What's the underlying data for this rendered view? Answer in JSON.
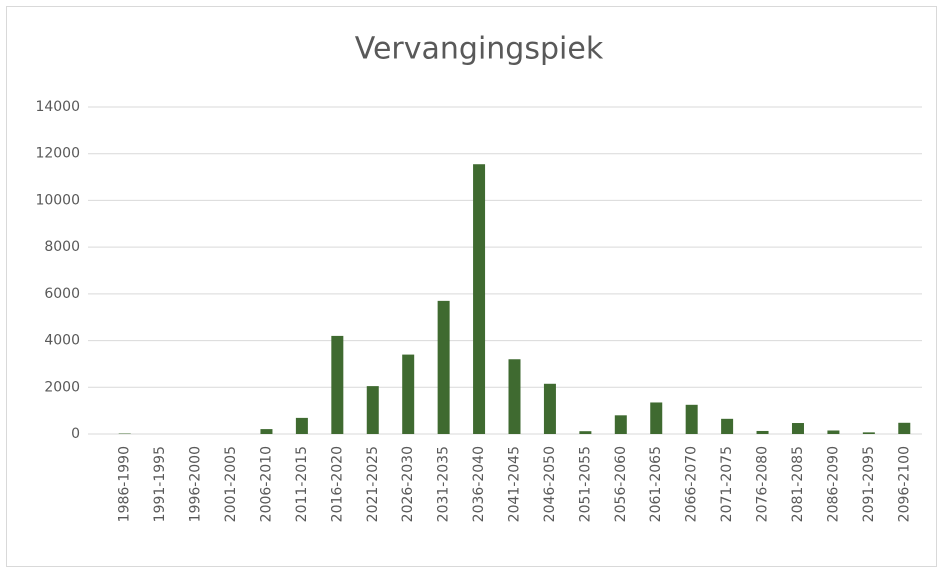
{
  "chart_data": {
    "type": "bar",
    "title": "Vervangingspiek",
    "categories": [
      "1986-1990",
      "1991-1995",
      "1996-2000",
      "2001-2005",
      "2006-2010",
      "2011-2015",
      "2016-2020",
      "2021-2025",
      "2026-2030",
      "2031-2035",
      "2036-2040",
      "2041-2045",
      "2046-2050",
      "2051-2055",
      "2056-2060",
      "2061-2065",
      "2066-2070",
      "2071-2075",
      "2076-2080",
      "2081-2085",
      "2086-2090",
      "2091-2095",
      "2096-2100"
    ],
    "values": [
      20,
      0,
      0,
      0,
      210,
      690,
      4200,
      2050,
      3400,
      5700,
      11550,
      3200,
      2150,
      120,
      800,
      1350,
      1250,
      650,
      130,
      470,
      150,
      70,
      480
    ],
    "color": "#3f6a30",
    "ylim": [
      0,
      14000
    ],
    "yticks": [
      0,
      2000,
      4000,
      6000,
      8000,
      10000,
      12000,
      14000
    ],
    "grid": true
  }
}
